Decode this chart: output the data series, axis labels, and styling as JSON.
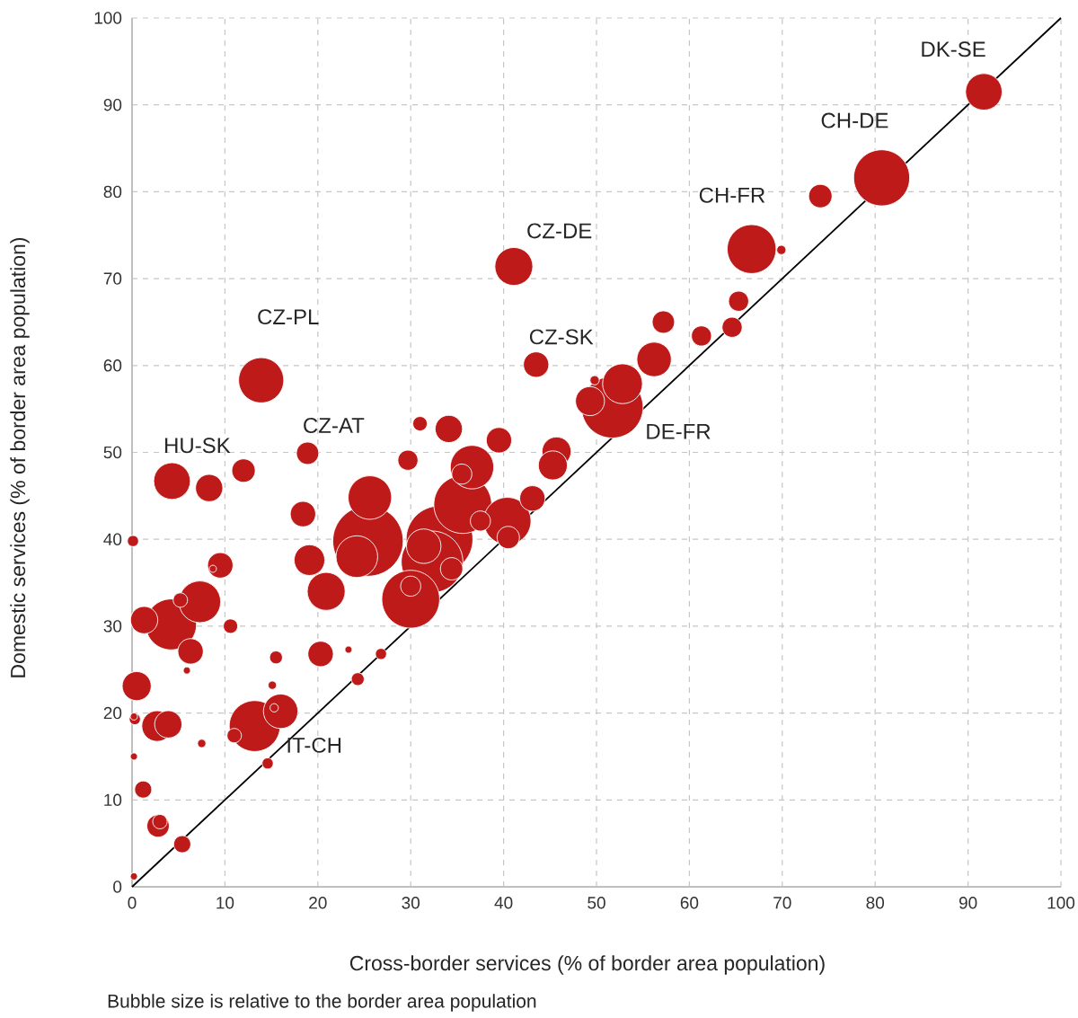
{
  "chart_data": {
    "type": "bubble",
    "xlabel": "Cross-border services (% of border area population)",
    "ylabel": "Domestic services (% of border area population)",
    "xlim": [
      0,
      100
    ],
    "ylim": [
      0,
      100
    ],
    "xticks": [
      0,
      10,
      20,
      30,
      40,
      50,
      60,
      70,
      80,
      90,
      100
    ],
    "yticks": [
      0,
      10,
      20,
      30,
      40,
      50,
      60,
      70,
      80,
      90,
      100
    ],
    "grid": true,
    "series": [
      {
        "color": "#be1a1a",
        "x": [
          91.7,
          80.7,
          74.1,
          66.7,
          69.9,
          65.3,
          64.6,
          57.2,
          61.3,
          56.2,
          41.1,
          43.5,
          52.8,
          49.8,
          51.7,
          49.3,
          45.7,
          45.3,
          43.1,
          31.0,
          34.1,
          39.5,
          29.7,
          36.6,
          35.5,
          35.6,
          37.5,
          40.4,
          40.5,
          33.1,
          32.3,
          31.4,
          34.4,
          30.0,
          30.0,
          25.4,
          24.2,
          25.6,
          19.1,
          20.9,
          18.4,
          18.9,
          20.3,
          23.3,
          26.8,
          24.3,
          13.2,
          16.0,
          15.3,
          11.0,
          14.6,
          15.5,
          15.1,
          7.5,
          12.0,
          13.9,
          4.3,
          8.3,
          9.5,
          8.7,
          7.3,
          5.2,
          4.2,
          1.3,
          6.3,
          10.6,
          5.9,
          0.1,
          0.5,
          0.3,
          0.2,
          2.7,
          3.9,
          0.2,
          1.2,
          2.8,
          3.0,
          5.4,
          0.2
        ],
        "values": [
          91.5,
          81.6,
          79.5,
          73.4,
          73.3,
          67.4,
          64.4,
          65.0,
          63.4,
          60.7,
          71.4,
          60.1,
          57.9,
          58.3,
          55.2,
          55.9,
          50.1,
          48.5,
          44.7,
          53.3,
          52.7,
          51.4,
          49.1,
          48.3,
          47.5,
          44.0,
          42.1,
          42.1,
          40.2,
          40.0,
          37.4,
          39.2,
          36.6,
          33.1,
          34.6,
          39.8,
          38.0,
          44.8,
          37.6,
          34.0,
          42.9,
          49.9,
          26.8,
          27.3,
          26.8,
          23.9,
          18.5,
          20.2,
          20.6,
          17.4,
          14.2,
          26.4,
          23.2,
          16.5,
          47.9,
          58.3,
          46.7,
          45.9,
          37.0,
          36.6,
          32.8,
          33.0,
          30.2,
          30.7,
          27.1,
          30.0,
          24.9,
          39.8,
          23.1,
          19.3,
          19.6,
          18.5,
          18.7,
          15.0,
          11.2,
          7.0,
          7.5,
          4.9,
          1.2
        ],
        "sizes": [
          0.28,
          0.64,
          0.12,
          0.49,
          0.03,
          0.09,
          0.09,
          0.11,
          0.09,
          0.25,
          0.3,
          0.14,
          0.33,
          0.03,
          0.77,
          0.18,
          0.18,
          0.18,
          0.14,
          0.06,
          0.16,
          0.14,
          0.09,
          0.39,
          0.09,
          0.68,
          0.09,
          0.46,
          0.11,
          0.9,
          0.77,
          0.25,
          0.11,
          0.68,
          0.09,
          1.0,
          0.36,
          0.39,
          0.2,
          0.3,
          0.14,
          0.11,
          0.14,
          0.01,
          0.04,
          0.05,
          0.53,
          0.25,
          0.02,
          0.06,
          0.04,
          0.05,
          0.02,
          0.02,
          0.12,
          0.42,
          0.28,
          0.16,
          0.14,
          0.01,
          0.36,
          0.06,
          0.53,
          0.16,
          0.14,
          0.06,
          0.01,
          0.04,
          0.18,
          0.04,
          0.01,
          0.2,
          0.16,
          0.01,
          0.08,
          0.11,
          0.06,
          0.08,
          0.01
        ]
      },
      {
        "type": "line",
        "color": "#000000",
        "x": [
          0,
          100
        ],
        "values": [
          0,
          100
        ]
      }
    ],
    "annotations": [
      {
        "text": "DK-SE",
        "x": 91.7,
        "y": 91.5
      },
      {
        "text": "CH-DE",
        "x": 80.7,
        "y": 81.6
      },
      {
        "text": "CH-FR",
        "x": 66.7,
        "y": 73.4
      },
      {
        "text": "CZ-DE",
        "x": 41.1,
        "y": 71.4
      },
      {
        "text": "CZ-SK",
        "x": 43.5,
        "y": 60.1
      },
      {
        "text": "CZ-PL",
        "x": 13.9,
        "y": 58.3
      },
      {
        "text": "CZ-AT",
        "x": 18.9,
        "y": 49.9
      },
      {
        "text": "HU-SK",
        "x": 4.3,
        "y": 46.7
      },
      {
        "text": "DE-FR",
        "x": 51.7,
        "y": 55.2
      },
      {
        "text": "IT-CH",
        "x": 13.2,
        "y": 18.5
      },
      "Bubble size is relative to the border area population"
    ]
  }
}
